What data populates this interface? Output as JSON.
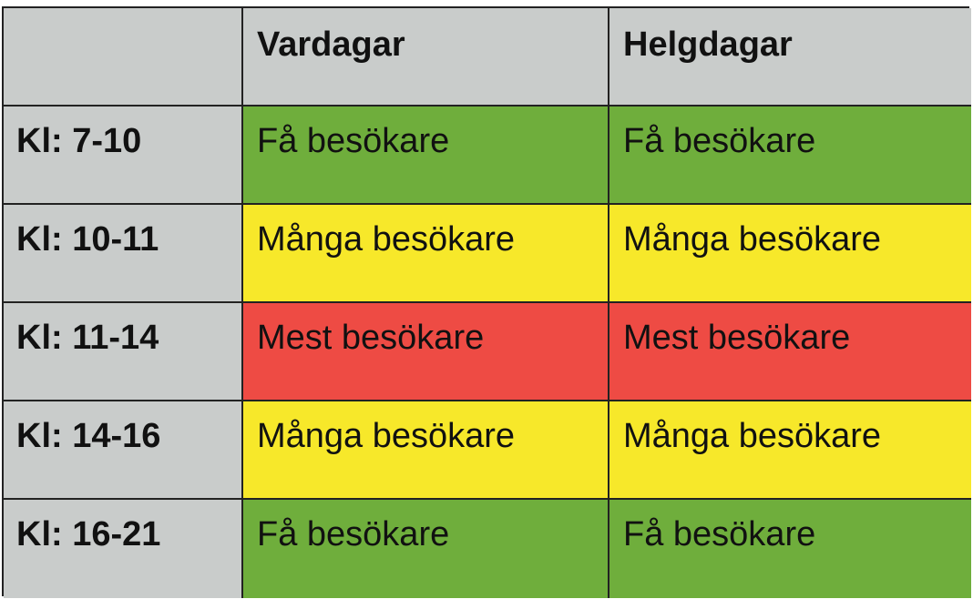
{
  "colors": {
    "grey": "#c9cccb",
    "green": "#6fae3c",
    "yellow": "#f7e82a",
    "red": "#ee4b44",
    "border": "#222222"
  },
  "header": {
    "corner": "",
    "col1": "Vardagar",
    "col2": "Helgdagar"
  },
  "rows": [
    {
      "time": "Kl: 7-10",
      "vardagar": "Få besökare",
      "helgdagar": "Få besökare",
      "level": "green"
    },
    {
      "time": "Kl: 10-11",
      "vardagar": "Många besökare",
      "helgdagar": "Många besökare",
      "level": "yellow"
    },
    {
      "time": "Kl: 11-14",
      "vardagar": "Mest besökare",
      "helgdagar": "Mest besökare",
      "level": "red"
    },
    {
      "time": "Kl: 14-16",
      "vardagar": "Många besökare",
      "helgdagar": "Många besökare",
      "level": "yellow"
    },
    {
      "time": "Kl: 16-21",
      "vardagar": "Få besökare",
      "helgdagar": "Få besökare",
      "level": "green"
    }
  ]
}
